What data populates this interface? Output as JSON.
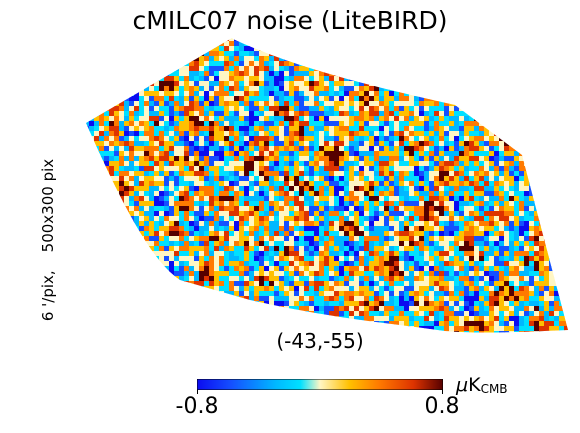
{
  "title": "cMILC07 noise (LiteBIRD)",
  "resolution": "6 '/pix,",
  "size": "500x300 pix",
  "center_coord": "(-43,-55)",
  "colorbar": {
    "min": -0.8,
    "max": 0.8,
    "min_label": "-0.8",
    "max_label": "0.8",
    "unit_prefix": "μ",
    "unit_main": "K",
    "unit_sub": "CMB",
    "colors": [
      "#0b0bf0",
      "#1550ff",
      "#00b8ff",
      "#00e0ff",
      "#fff6c4",
      "#ffc000",
      "#ff7a00",
      "#dd3300",
      "#550000"
    ]
  },
  "map": {
    "projection": "gnomonic patch",
    "field": "noise"
  }
}
